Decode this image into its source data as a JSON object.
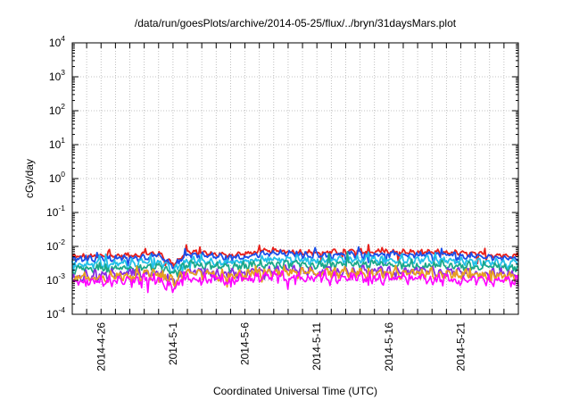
{
  "chart_data": {
    "type": "line",
    "title": "/data/run/goesPlots/archive/2014-05-25/flux/../bryn/31daysMars.plot",
    "xlabel": "Coordinated Universal Time (UTC)",
    "ylabel": "cGy/day",
    "yscale": "log",
    "ylim": [
      0.0001,
      10000
    ],
    "y_ticks": [
      {
        "value": 0.0001,
        "base": "10",
        "exp": "-4"
      },
      {
        "value": 0.001,
        "base": "10",
        "exp": "-3"
      },
      {
        "value": 0.01,
        "base": "10",
        "exp": "-2"
      },
      {
        "value": 0.1,
        "base": "10",
        "exp": "-1"
      },
      {
        "value": 1,
        "base": "10",
        "exp": "0"
      },
      {
        "value": 10,
        "base": "10",
        "exp": "1"
      },
      {
        "value": 100,
        "base": "10",
        "exp": "2"
      },
      {
        "value": 1000,
        "base": "10",
        "exp": "3"
      },
      {
        "value": 10000,
        "base": "10",
        "exp": "4"
      }
    ],
    "x_range": [
      "2014-04-24",
      "2014-05-25"
    ],
    "x_ticks": [
      "2014-4-26",
      "2014-5-1",
      "2014-5-6",
      "2014-5-11",
      "2014-5-16",
      "2014-5-21"
    ],
    "grid": true,
    "legend": "none",
    "series": [
      {
        "color": "#e8201a",
        "x": [
          "2014-04-24",
          "2014-04-27",
          "2014-04-30",
          "2014-05-01",
          "2014-05-02",
          "2014-05-05",
          "2014-05-08",
          "2014-05-11",
          "2014-05-14",
          "2014-05-17",
          "2014-05-20",
          "2014-05-23",
          "2014-05-25"
        ],
        "values": [
          0.005,
          0.0052,
          0.0062,
          0.003,
          0.0068,
          0.0055,
          0.0075,
          0.0065,
          0.0072,
          0.0068,
          0.0066,
          0.0056,
          0.0054
        ]
      },
      {
        "color": "#1a4fe8",
        "x": [
          "2014-04-24",
          "2014-04-27",
          "2014-04-30",
          "2014-05-01",
          "2014-05-02",
          "2014-05-05",
          "2014-05-08",
          "2014-05-11",
          "2014-05-14",
          "2014-05-17",
          "2014-05-20",
          "2014-05-23",
          "2014-05-25"
        ],
        "values": [
          0.0043,
          0.0044,
          0.0052,
          0.0025,
          0.0058,
          0.0047,
          0.0062,
          0.0055,
          0.006,
          0.0057,
          0.0055,
          0.0047,
          0.0045
        ]
      },
      {
        "color": "#22c0e8",
        "x": [
          "2014-04-24",
          "2014-04-27",
          "2014-04-30",
          "2014-05-01",
          "2014-05-02",
          "2014-05-05",
          "2014-05-08",
          "2014-05-11",
          "2014-05-14",
          "2014-05-17",
          "2014-05-20",
          "2014-05-23",
          "2014-05-25"
        ],
        "values": [
          0.003,
          0.0031,
          0.0036,
          0.0019,
          0.004,
          0.0033,
          0.0044,
          0.0039,
          0.0042,
          0.004,
          0.0039,
          0.0033,
          0.0032
        ]
      },
      {
        "color": "#1aa88a",
        "x": [
          "2014-04-24",
          "2014-04-27",
          "2014-04-30",
          "2014-05-01",
          "2014-05-02",
          "2014-05-05",
          "2014-05-08",
          "2014-05-11",
          "2014-05-14",
          "2014-05-17",
          "2014-05-20",
          "2014-05-23",
          "2014-05-25"
        ],
        "values": [
          0.0021,
          0.0022,
          0.0026,
          0.0014,
          0.0029,
          0.0024,
          0.0031,
          0.0028,
          0.003,
          0.0029,
          0.0028,
          0.0024,
          0.0023
        ]
      },
      {
        "color": "#8a2be2",
        "x": [
          "2014-04-24",
          "2014-04-27",
          "2014-04-30",
          "2014-05-01",
          "2014-05-02",
          "2014-05-05",
          "2014-05-08",
          "2014-05-11",
          "2014-05-14",
          "2014-05-17",
          "2014-05-20",
          "2014-05-23",
          "2014-05-25"
        ],
        "values": [
          0.0014,
          0.0015,
          0.0017,
          0.001,
          0.0019,
          0.0016,
          0.002,
          0.0018,
          0.0019,
          0.0018,
          0.0018,
          0.0016,
          0.0015
        ]
      },
      {
        "color": "#e8a020",
        "x": [
          "2014-04-24",
          "2014-04-27",
          "2014-04-30",
          "2014-05-01",
          "2014-05-02",
          "2014-05-05",
          "2014-05-08",
          "2014-05-11",
          "2014-05-14",
          "2014-05-17",
          "2014-05-20",
          "2014-05-23",
          "2014-05-25"
        ],
        "values": [
          0.0012,
          0.0013,
          0.0015,
          0.0009,
          0.0017,
          0.0014,
          0.0018,
          0.0016,
          0.0017,
          0.0016,
          0.0016,
          0.0014,
          0.0013
        ]
      },
      {
        "color": "#ff00ff",
        "x": [
          "2014-04-24",
          "2014-04-27",
          "2014-04-30",
          "2014-05-01",
          "2014-05-02",
          "2014-05-05",
          "2014-05-08",
          "2014-05-11",
          "2014-05-14",
          "2014-05-17",
          "2014-05-20",
          "2014-05-23",
          "2014-05-25"
        ],
        "values": [
          0.0009,
          0.0009,
          0.0011,
          0.0006,
          0.0012,
          0.001,
          0.0013,
          0.0011,
          0.0012,
          0.0012,
          0.0011,
          0.001,
          0.0009
        ]
      }
    ]
  }
}
